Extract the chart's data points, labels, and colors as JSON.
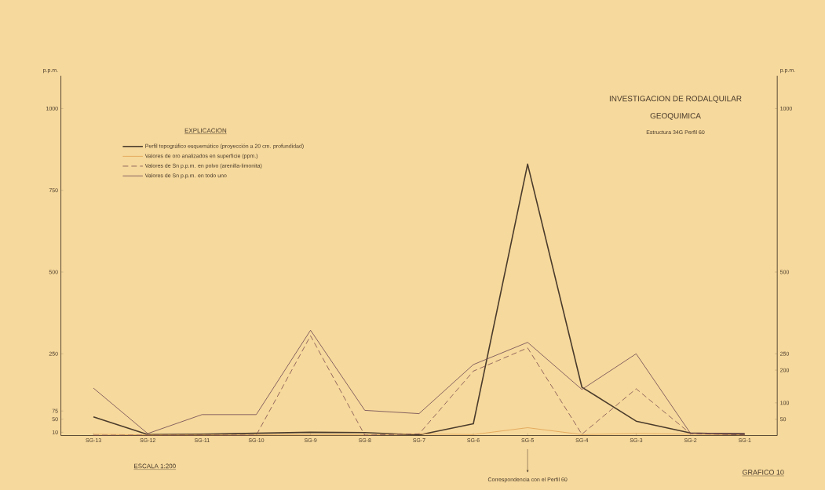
{
  "chart_data": {
    "type": "line",
    "title": "INVESTIGACION DE RODALQUILAR",
    "subtitle": "GEOQUIMICA",
    "ylabel": "p.p.m.",
    "y2label": "p.p.m.",
    "legend_title": "EXPLICACION",
    "legend": "top left",
    "annotations": [
      "Estructura 34G  Perfil 60",
      "ESCALA 1:200",
      "Correspondencia con el Perfil 60",
      "GRAFICO 10"
    ],
    "categories": [
      "SG-13",
      "SG-12",
      "SG-11",
      "SG-10",
      "SG-9",
      "SG-8",
      "SG-7",
      "SG-6",
      "SG-5",
      "SG-4",
      "SG-3",
      "SG-2",
      "SG-1"
    ],
    "ylim": [
      0,
      1100
    ],
    "yticks": [
      10,
      50,
      75,
      250,
      500,
      750,
      1000
    ],
    "y2lim": [
      0,
      1100
    ],
    "y2ticks": [
      50,
      100,
      200,
      250,
      500,
      1000
    ],
    "series": [
      {
        "name": "Perfil topográfico esquemático (proyección a 20 cm. profundidad)",
        "color": "#4a3b2c",
        "line_style": "solid",
        "values": [
          57,
          3,
          4,
          7,
          10,
          9,
          2,
          36,
          830,
          148,
          44,
          8,
          4
        ]
      },
      {
        "name": "Valores de oro analizados en superficie (ppm.)",
        "color": "#e0a050",
        "line_style": "solid",
        "values": [
          4,
          2,
          2,
          2,
          2,
          2,
          5,
          3,
          24,
          3,
          6,
          4,
          2
        ]
      },
      {
        "name": "Valores de Sn p.p.m. en polvo (arenilla-limonita)",
        "color": "#7a4a4e",
        "line_style": "dashed",
        "values": [
          1,
          1,
          1,
          1,
          305,
          1,
          5,
          197,
          268,
          4,
          143,
          6,
          2
        ]
      },
      {
        "name": "Valores de Sn p.p.m. en todo uno",
        "color": "#6a4552",
        "line_style": "solid",
        "values": [
          145,
          6,
          64,
          64,
          322,
          77,
          67,
          217,
          285,
          141,
          250,
          7,
          7
        ]
      }
    ]
  }
}
